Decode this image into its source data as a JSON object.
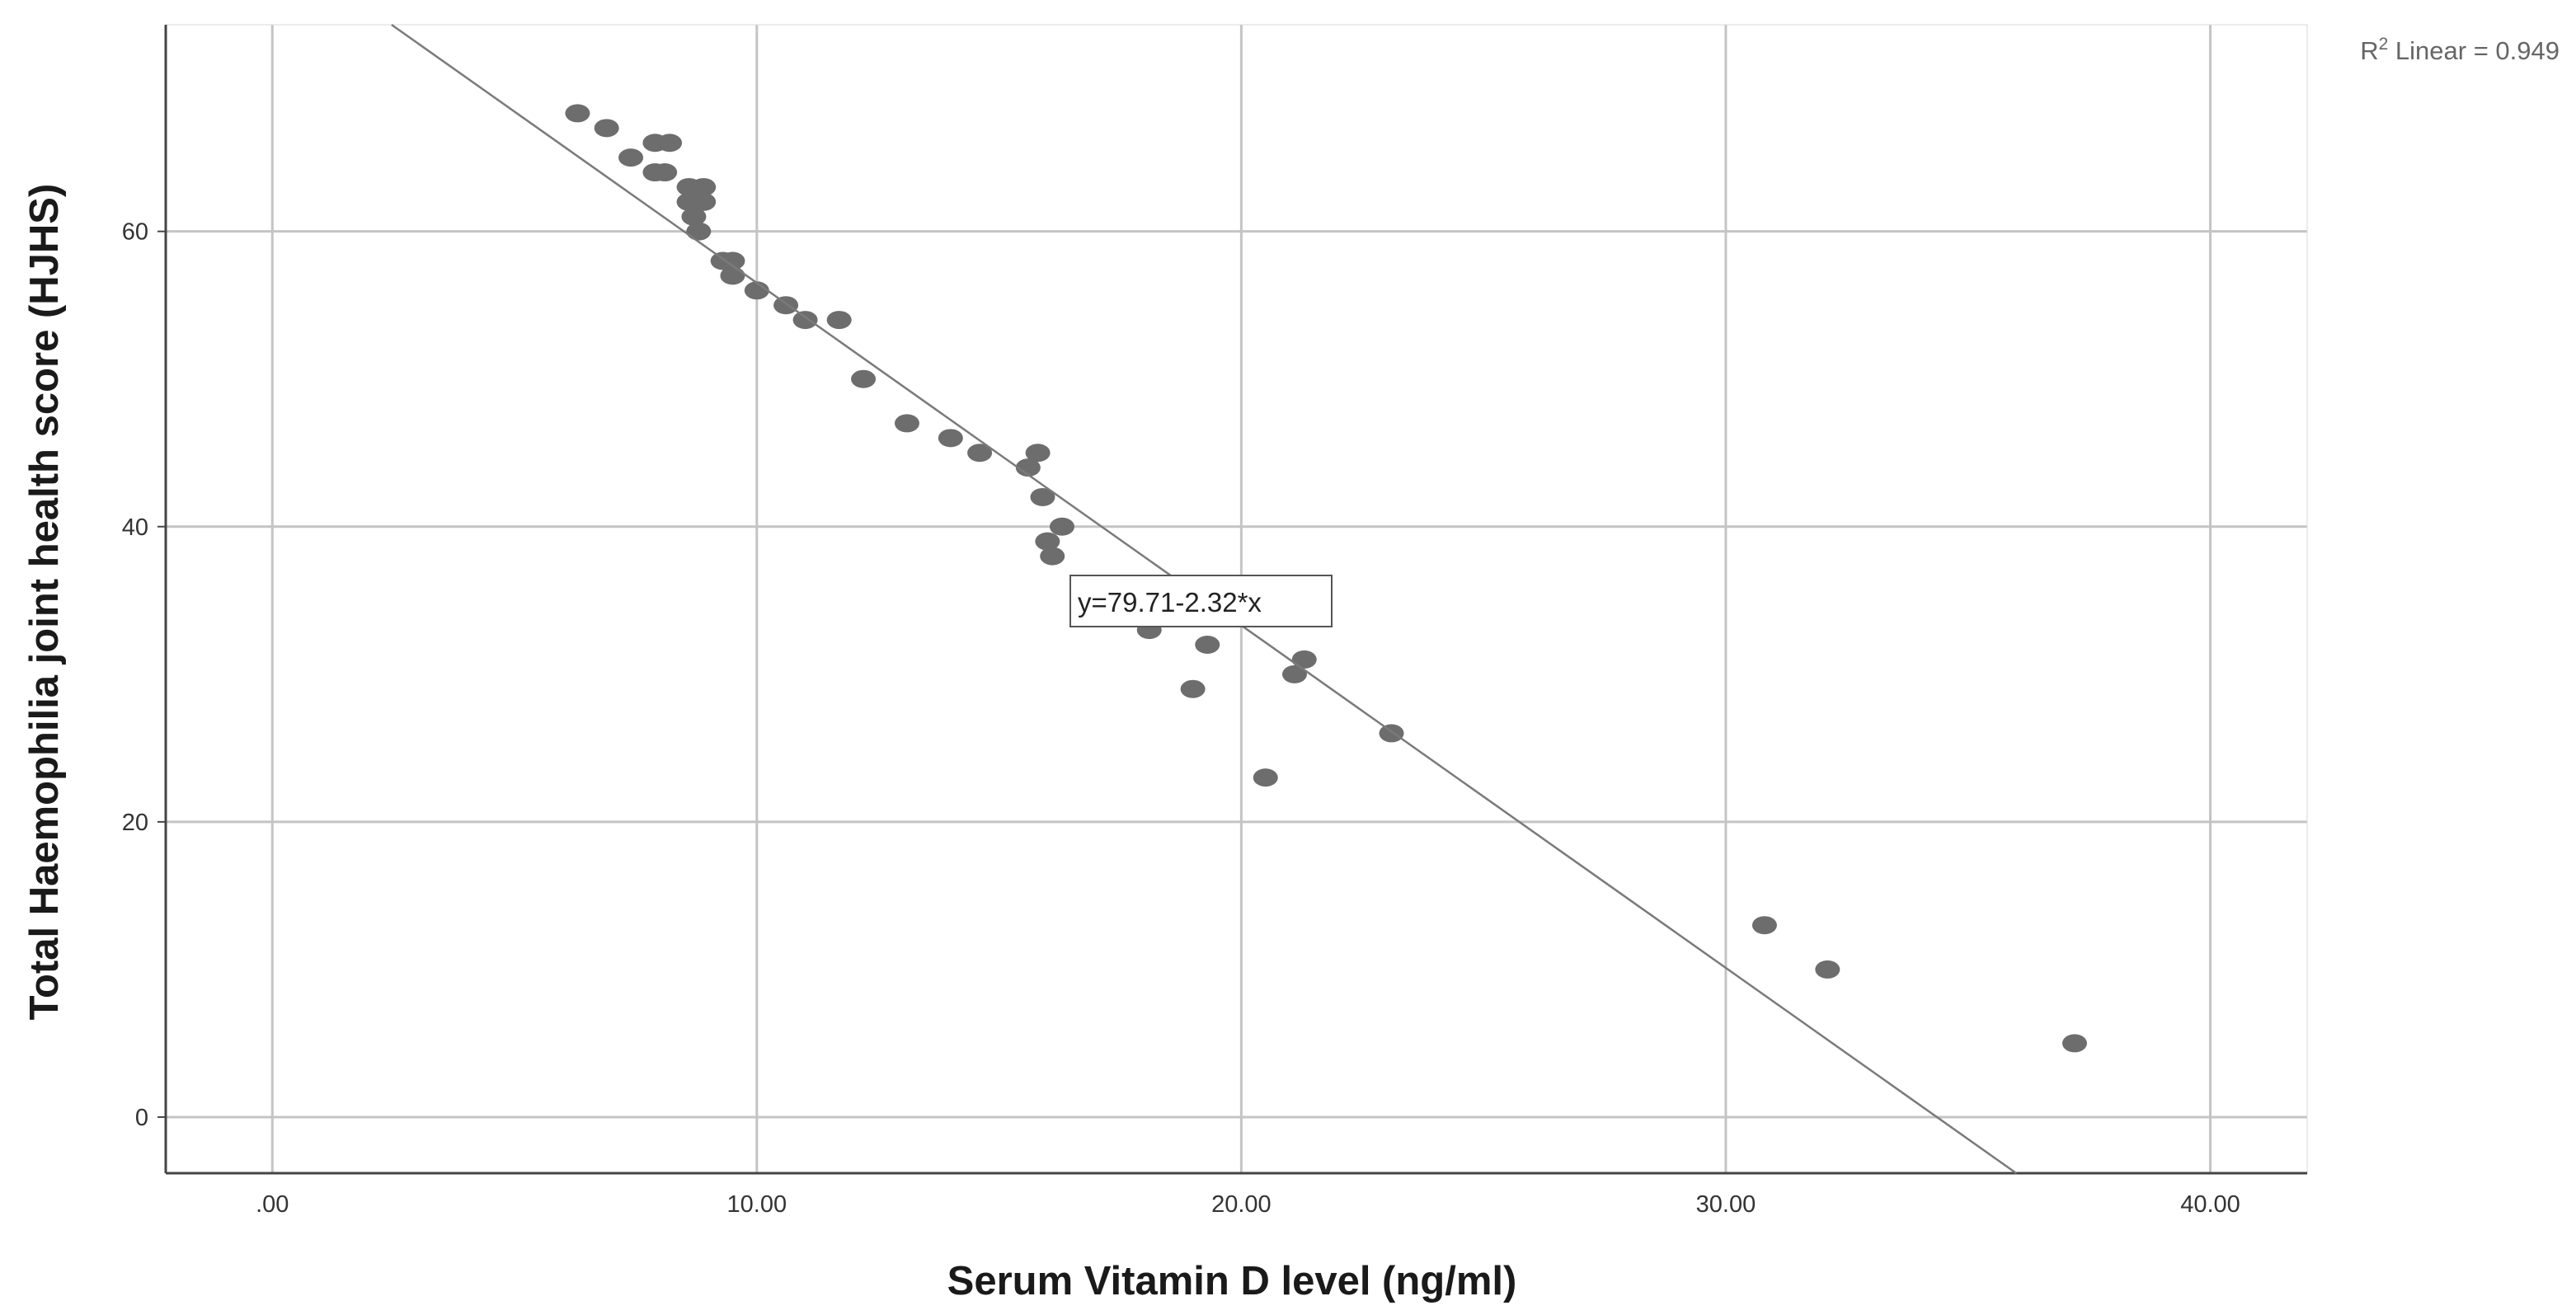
{
  "chart_data": {
    "type": "scatter",
    "title": "",
    "xlabel": "Serum Vitamin D level (ng/ml)",
    "ylabel": "Total Haemophilia joint health score (HJHS)",
    "xlim": [
      -2.2,
      42
    ],
    "ylim": [
      -3.8,
      74
    ],
    "x_ticks": [
      0,
      10,
      20,
      30,
      40
    ],
    "x_tick_labels": [
      ".00",
      "10.00",
      "20.00",
      "30.00",
      "40.00"
    ],
    "y_ticks": [
      0,
      20,
      40,
      60
    ],
    "y_tick_labels": [
      "0",
      "20",
      "40",
      "60"
    ],
    "grid": true,
    "r2_label": {
      "prefix": "R",
      "sup": "2",
      "text": " Linear = 0.949"
    },
    "fit_line": {
      "intercept": 79.71,
      "slope": -2.32,
      "equation_label": "y=79.71-2.32*x"
    },
    "series": [
      {
        "name": "Total Haemophilia joint health score (HJHS)",
        "color": "#6d6d6d",
        "points": [
          [
            6.3,
            68
          ],
          [
            6.9,
            67
          ],
          [
            7.4,
            65
          ],
          [
            7.9,
            66
          ],
          [
            8.2,
            66
          ],
          [
            7.9,
            64
          ],
          [
            8.1,
            64
          ],
          [
            8.6,
            63
          ],
          [
            8.9,
            63
          ],
          [
            8.6,
            62
          ],
          [
            8.9,
            62
          ],
          [
            8.7,
            61
          ],
          [
            8.8,
            60
          ],
          [
            9.3,
            58
          ],
          [
            9.5,
            58
          ],
          [
            9.5,
            57
          ],
          [
            10.0,
            56
          ],
          [
            10.6,
            55
          ],
          [
            11.0,
            54
          ],
          [
            11.7,
            54
          ],
          [
            12.2,
            50
          ],
          [
            13.1,
            47
          ],
          [
            14.0,
            46
          ],
          [
            14.6,
            45
          ],
          [
            15.8,
            45
          ],
          [
            15.6,
            44
          ],
          [
            15.9,
            42
          ],
          [
            16.3,
            40
          ],
          [
            16.0,
            39
          ],
          [
            16.1,
            38
          ],
          [
            18.1,
            33
          ],
          [
            19.3,
            32
          ],
          [
            21.3,
            31
          ],
          [
            21.1,
            30
          ],
          [
            19.0,
            29
          ],
          [
            23.1,
            26
          ],
          [
            20.5,
            23
          ],
          [
            30.8,
            13
          ],
          [
            32.1,
            10
          ],
          [
            37.2,
            5
          ]
        ]
      }
    ]
  }
}
